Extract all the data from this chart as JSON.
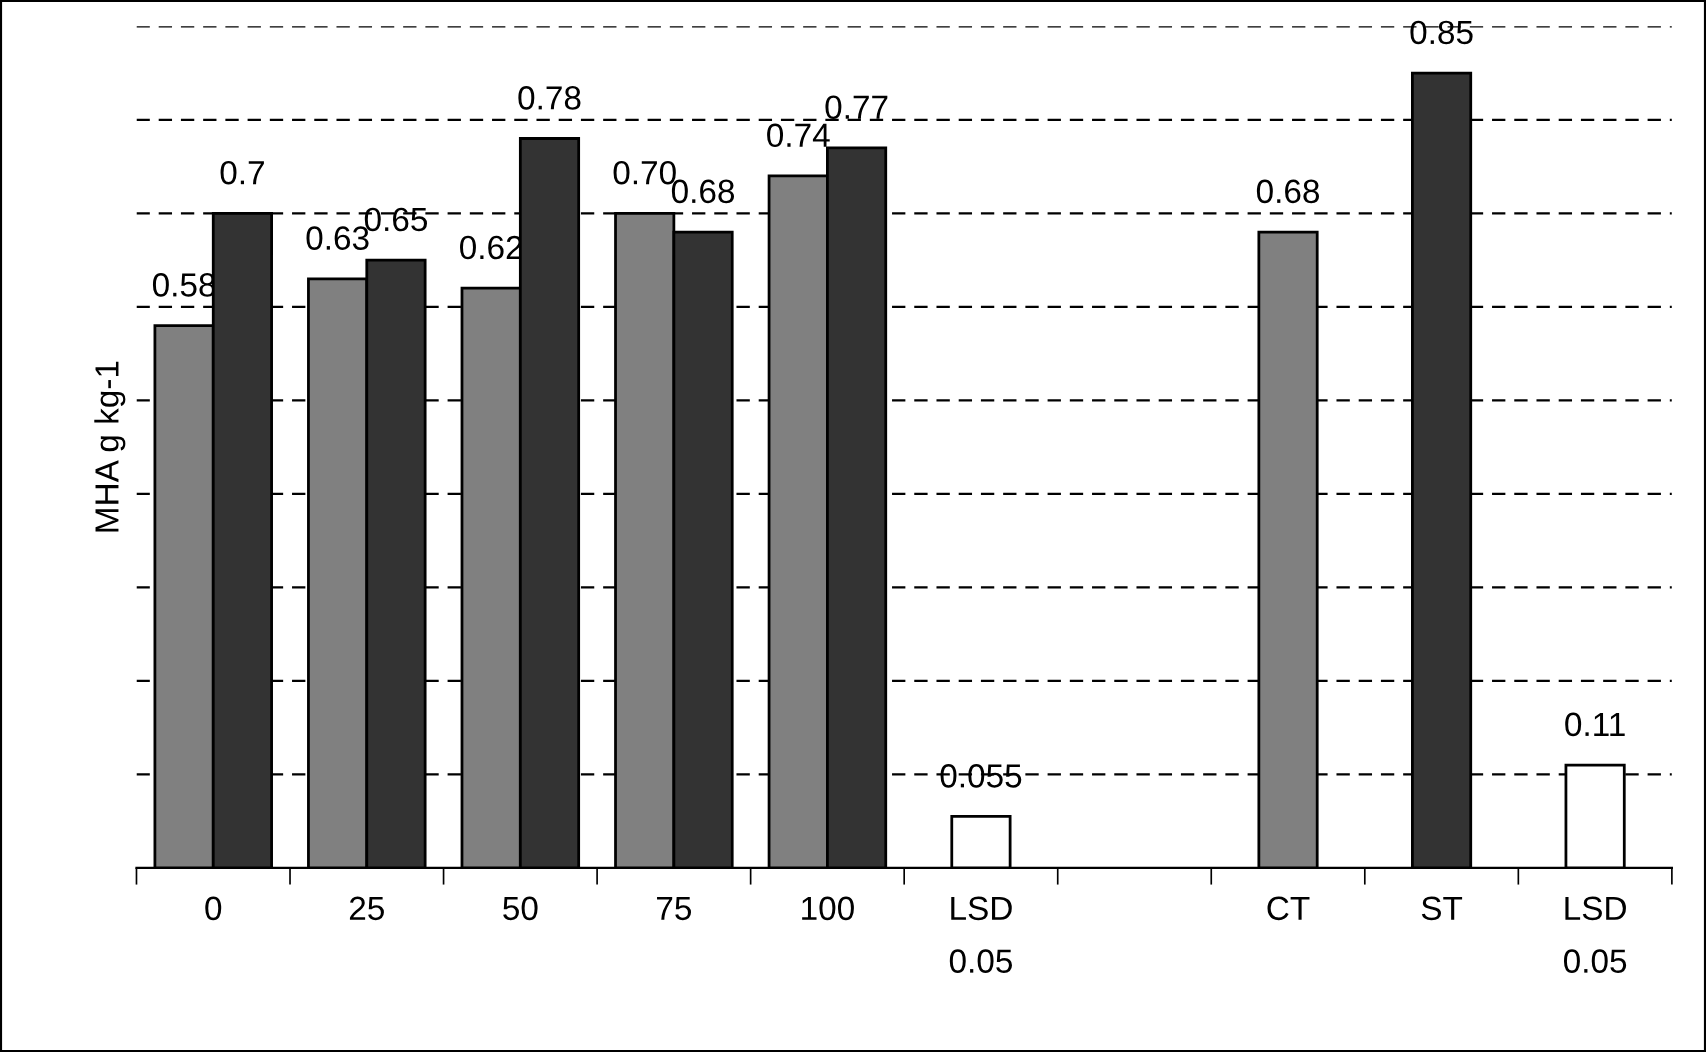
{
  "chart_data": {
    "type": "bar",
    "ylabel": "MHA g kg-1",
    "categories": [
      "0",
      "25",
      "50",
      "75",
      "100",
      "LSD\n0.05",
      null,
      "CT",
      "ST",
      "LSD\n0.05"
    ],
    "series": [
      {
        "color": "#808080",
        "values": [
          0.58,
          0.63,
          0.62,
          0.7,
          0.74,
          null,
          null,
          0.68,
          null,
          null
        ],
        "value_labels": [
          "0.58",
          "0.63",
          "0.62",
          "0.70",
          "0.74",
          null,
          null,
          "0.68",
          null,
          null
        ]
      },
      {
        "color": "#ffffff",
        "values": [
          null,
          null,
          null,
          null,
          null,
          0.055,
          null,
          null,
          null,
          0.11
        ],
        "value_labels": [
          null,
          null,
          null,
          null,
          null,
          "0.055",
          null,
          null,
          null,
          "0.11"
        ]
      },
      {
        "color": "#333333",
        "values": [
          0.7,
          0.65,
          0.78,
          0.68,
          0.77,
          null,
          null,
          null,
          0.85,
          null
        ],
        "value_labels": [
          "0.7",
          "0.65",
          "0.78",
          "0.68",
          "0.77",
          null,
          null,
          null,
          "0.85",
          null
        ]
      }
    ],
    "ylim": [
      0,
      0.9
    ],
    "yticks": [
      {
        "value": 0.1,
        "label": null
      },
      {
        "value": 0.2,
        "label": null
      },
      {
        "value": 0.3,
        "label": null
      },
      {
        "value": 0.4,
        "label": null
      },
      {
        "value": 0.5,
        "label": null
      },
      {
        "value": 0.6,
        "label": null
      },
      {
        "value": 0.7,
        "label": null
      },
      {
        "value": 0.8,
        "label": null
      },
      {
        "value": 0.9,
        "label": null
      }
    ],
    "grid": "y",
    "legend": false,
    "tick_labels": "x"
  }
}
